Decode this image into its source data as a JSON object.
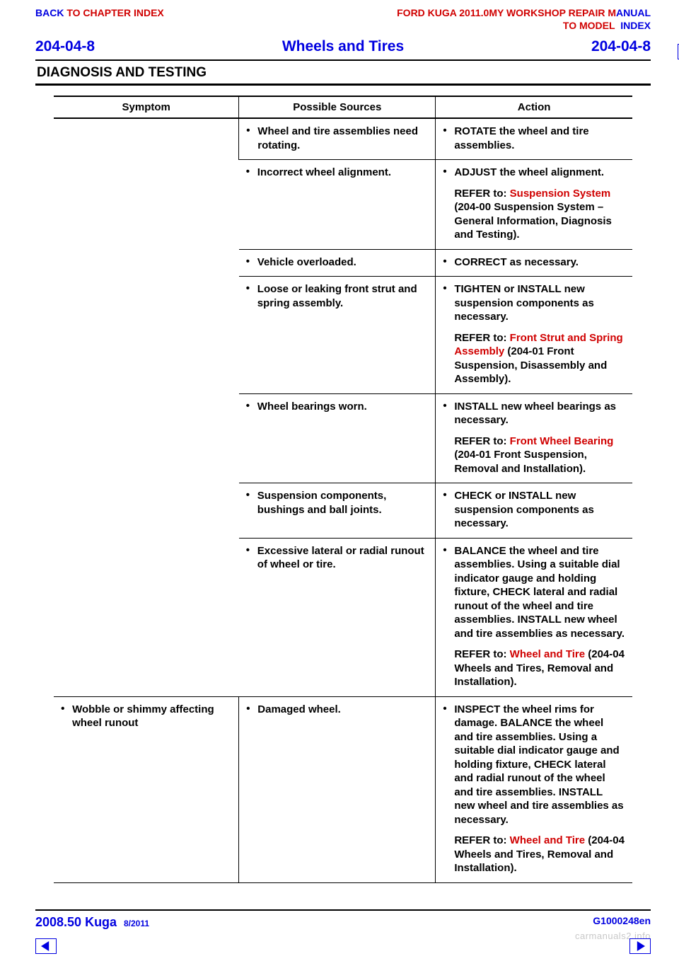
{
  "colors": {
    "red": "#d00000",
    "blue": "#0000e0",
    "black": "#000000",
    "grey": "#c8c8c8",
    "white": "#ffffff"
  },
  "top": {
    "back_label": "BACK ",
    "back_rest": "TO CHAPTER INDEX",
    "manual_prefix": "FORD KUGA 2011.0MY WORKSHOP REPAIR M",
    "manual_suffix": "ANUAL",
    "to_model": "TO MODEL ",
    "index": "INDEX"
  },
  "header": {
    "left": "204-04-8",
    "center": "Wheels and Tires",
    "right": "204-04-8"
  },
  "section_title": "DIAGNOSIS AND TESTING",
  "table": {
    "headers": [
      "Symptom",
      "Possible Sources",
      "Action"
    ],
    "rows": [
      {
        "symptom": "",
        "source": "Wheel and tire assemblies need rotating.",
        "action": "ROTATE the wheel and tire assemblies.",
        "refer": null
      },
      {
        "symptom": "",
        "source": "Incorrect wheel alignment.",
        "action": "ADJUST the wheel alignment.",
        "refer": {
          "label": "REFER to: ",
          "link": "Suspension System",
          "rest": " (204-00 Suspension System – General Information, Diagnosis and Testing)."
        }
      },
      {
        "symptom": "",
        "source": "Vehicle overloaded.",
        "action": "CORRECT as necessary.",
        "refer": null
      },
      {
        "symptom": "",
        "source": "Loose or leaking front strut and spring assembly.",
        "action": "TIGHTEN or INSTALL new suspension components as necessary.",
        "refer": {
          "label": "REFER to: ",
          "link": "Front Strut and Spring Assembly",
          "rest": " (204-01 Front Suspension, Disassembly and Assembly)."
        }
      },
      {
        "symptom": "",
        "source": "Wheel bearings worn.",
        "action": "INSTALL new wheel bearings as necessary.",
        "refer": {
          "label": "REFER to: ",
          "link": "Front Wheel Bearing",
          "rest": " (204-01 Front Suspension, Removal and Installation)."
        }
      },
      {
        "symptom": "",
        "source": "Suspension components, bushings and ball joints.",
        "action": "CHECK or INSTALL new suspension components as necessary.",
        "refer": null
      },
      {
        "symptom": "",
        "source": "Excessive lateral or radial runout of wheel or tire.",
        "action": "BALANCE the wheel and tire assemblies. Using a suitable dial indicator gauge and holding fixture, CHECK lateral and radial runout of the wheel and tire assemblies. INSTALL new wheel and tire assemblies as necessary.",
        "refer": {
          "label": "REFER to: ",
          "link": "Wheel and Tire",
          "rest": " (204-04 Wheels and Tires, Removal and Installation)."
        }
      },
      {
        "symptom": "Wobble or shimmy affecting wheel runout",
        "source": "Damaged wheel.",
        "action": "INSPECT the wheel rims for damage. BALANCE the wheel and tire assemblies. Using a suitable dial indicator gauge and holding fixture, CHECK lateral and radial runout of the wheel and tire assemblies. INSTALL new wheel and tire assemblies as necessary.",
        "refer": {
          "label": "REFER to: ",
          "link": "Wheel and Tire",
          "rest": " (204-04 Wheels and Tires, Removal and Installation)."
        }
      }
    ]
  },
  "footer": {
    "model": "2008.50 Kuga",
    "date": "8/2011",
    "code": "G1000248en"
  },
  "watermark": "carmanuals2.info"
}
